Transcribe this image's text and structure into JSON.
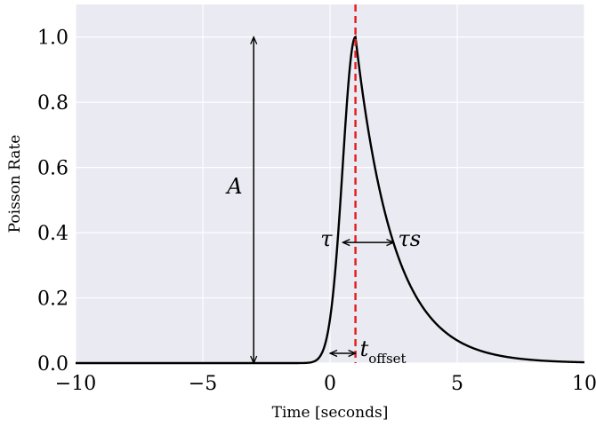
{
  "chart_data": {
    "type": "line",
    "xlabel": "Time [seconds]",
    "ylabel": "Poisson Rate",
    "xlim": [
      -10,
      10
    ],
    "ylim": [
      0,
      1.1
    ],
    "x_ticks": [
      -10,
      -5,
      0,
      5,
      10
    ],
    "x_tick_labels": [
      "−10",
      "−5",
      "0",
      "5",
      "10"
    ],
    "y_ticks": [
      0,
      0.2,
      0.4,
      0.6,
      0.8,
      1.0
    ],
    "y_tick_labels": [
      "0.0",
      "0.2",
      "0.4",
      "0.6",
      "0.8",
      "1.0"
    ],
    "grid": true,
    "background": "#eaeaf2",
    "pulse": {
      "amplitude": 1.0,
      "peak_time": 1.0,
      "rise_tau": 0.5,
      "decay_tau": 1.5
    },
    "series": [
      {
        "color": "#000000",
        "x": [
          -10,
          -3,
          -2,
          -1.5,
          -1,
          -0.5,
          0,
          0.25,
          0.5,
          0.75,
          1.0,
          1.25,
          1.5,
          2,
          2.5,
          3,
          4,
          5,
          6,
          7,
          8,
          9,
          10
        ],
        "y": [
          0,
          0,
          0.002,
          0.007,
          0.018,
          0.05,
          0.135,
          0.22,
          0.37,
          0.61,
          1.0,
          0.85,
          0.72,
          0.51,
          0.37,
          0.26,
          0.14,
          0.069,
          0.036,
          0.018,
          0.009,
          0.005,
          0.002
        ]
      }
    ],
    "annotations": {
      "amplitude": {
        "label": "A",
        "x": -3,
        "y_from": 0,
        "y_to": 1.0
      },
      "peak_line": {
        "x": 1.0,
        "color": "#e41a1c"
      },
      "rise": {
        "label": "τ",
        "x_from": 0.5,
        "x_to": 1.0,
        "y": 0.37
      },
      "decay": {
        "label": "τs",
        "x_from": 1.0,
        "x_to": 2.5,
        "y": 0.37
      },
      "offset": {
        "label": "t",
        "subscript": "offset",
        "x_from": 0,
        "x_to": 1.0,
        "y": 0.03
      }
    }
  }
}
